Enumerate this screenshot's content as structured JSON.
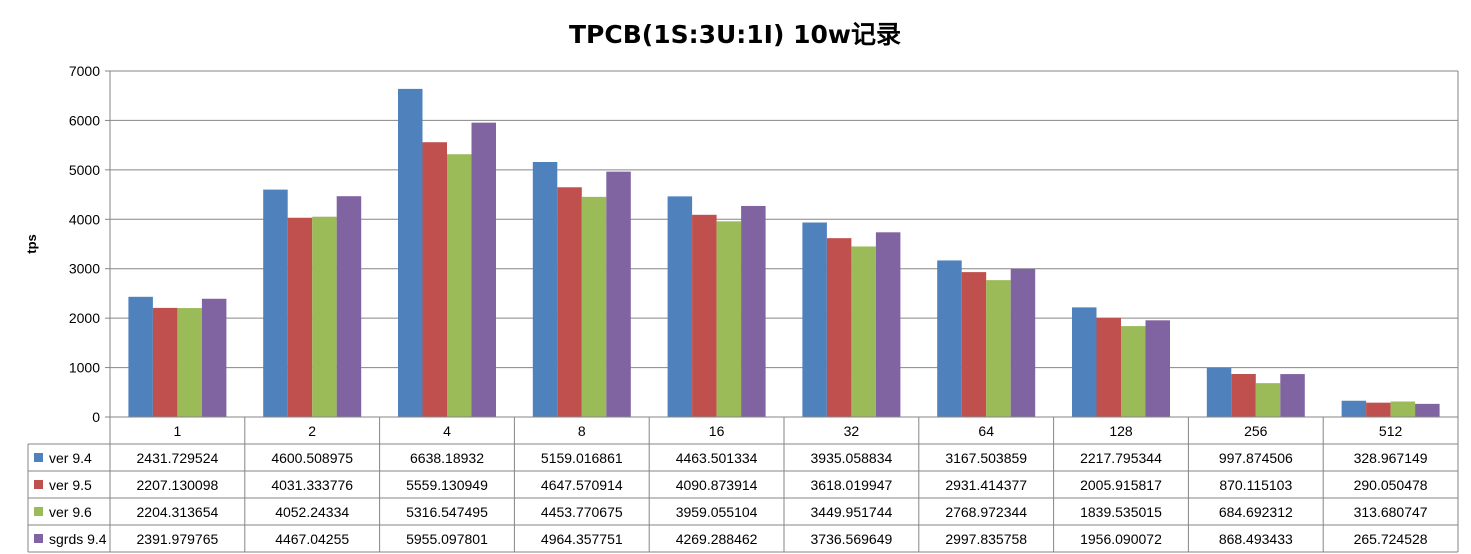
{
  "chart_data": {
    "type": "bar",
    "title": "TPCB(1S:3U:1I) 10w记录",
    "xlabel": "",
    "ylabel": "tps",
    "ylim": [
      0,
      7000
    ],
    "yticks": [
      0,
      1000,
      2000,
      3000,
      4000,
      5000,
      6000,
      7000
    ],
    "grid": true,
    "legend": "data-table",
    "categories": [
      "1",
      "2",
      "4",
      "8",
      "16",
      "32",
      "64",
      "128",
      "256",
      "512"
    ],
    "series": [
      {
        "name": "ver 9.4",
        "color": "#4F81BD",
        "values": [
          2431.729524,
          4600.508975,
          6638.18932,
          5159.016861,
          4463.501334,
          3935.058834,
          3167.503859,
          2217.795344,
          997.874506,
          328.967149
        ],
        "labels": [
          "2431.729524",
          "4600.508975",
          "6638.18932",
          "5159.016861",
          "4463.501334",
          "3935.058834",
          "3167.503859",
          "2217.795344",
          "997.874506",
          "328.967149"
        ]
      },
      {
        "name": "ver 9.5",
        "color": "#C0504D",
        "values": [
          2207.130098,
          4031.333776,
          5559.130949,
          4647.570914,
          4090.873914,
          3618.019947,
          2931.414377,
          2005.915817,
          870.115103,
          290.050478
        ],
        "labels": [
          "2207.130098",
          "4031.333776",
          "5559.130949",
          "4647.570914",
          "4090.873914",
          "3618.019947",
          "2931.414377",
          "2005.915817",
          "870.115103",
          "290.050478"
        ]
      },
      {
        "name": "ver 9.6",
        "color": "#9BBB59",
        "values": [
          2204.313654,
          4052.24334,
          5316.547495,
          4453.770675,
          3959.055104,
          3449.951744,
          2768.972344,
          1839.535015,
          684.692312,
          313.680747
        ],
        "labels": [
          "2204.313654",
          "4052.24334",
          "5316.547495",
          "4453.770675",
          "3959.055104",
          "3449.951744",
          "2768.972344",
          "1839.535015",
          "684.692312",
          "313.680747"
        ]
      },
      {
        "name": "sgrds 9.4",
        "color": "#8064A2",
        "values": [
          2391.979765,
          4467.04255,
          5955.097801,
          4964.357751,
          4269.288462,
          3736.569649,
          2997.835758,
          1956.090072,
          868.493433,
          265.724528
        ],
        "labels": [
          "2391.979765",
          "4467.04255",
          "5955.097801",
          "4964.357751",
          "4269.288462",
          "3736.569649",
          "2997.835758",
          "1956.090072",
          "868.493433",
          "265.724528"
        ]
      }
    ]
  }
}
